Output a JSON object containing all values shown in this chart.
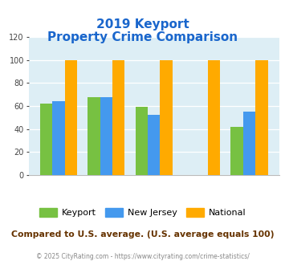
{
  "title_line1": "2019 Keyport",
  "title_line2": "Property Crime Comparison",
  "keyport": [
    62,
    68,
    59,
    0,
    42
  ],
  "new_jersey": [
    64,
    68,
    52,
    0,
    55
  ],
  "national": [
    100,
    100,
    100,
    100,
    100
  ],
  "colors": {
    "keyport": "#77c142",
    "new_jersey": "#4499ee",
    "national": "#ffaa00",
    "background": "#ddeef5",
    "title": "#1a66cc",
    "xlabel_color": "#aa8833",
    "footnote_color": "#663300",
    "footer_color": "#888888"
  },
  "ylim": [
    0,
    120
  ],
  "yticks": [
    0,
    20,
    40,
    60,
    80,
    100,
    120
  ],
  "legend_labels": [
    "Keyport",
    "New Jersey",
    "National"
  ],
  "footnote": "Compared to U.S. average. (U.S. average equals 100)",
  "footer": "© 2025 CityRating.com - https://www.cityrating.com/crime-statistics/"
}
